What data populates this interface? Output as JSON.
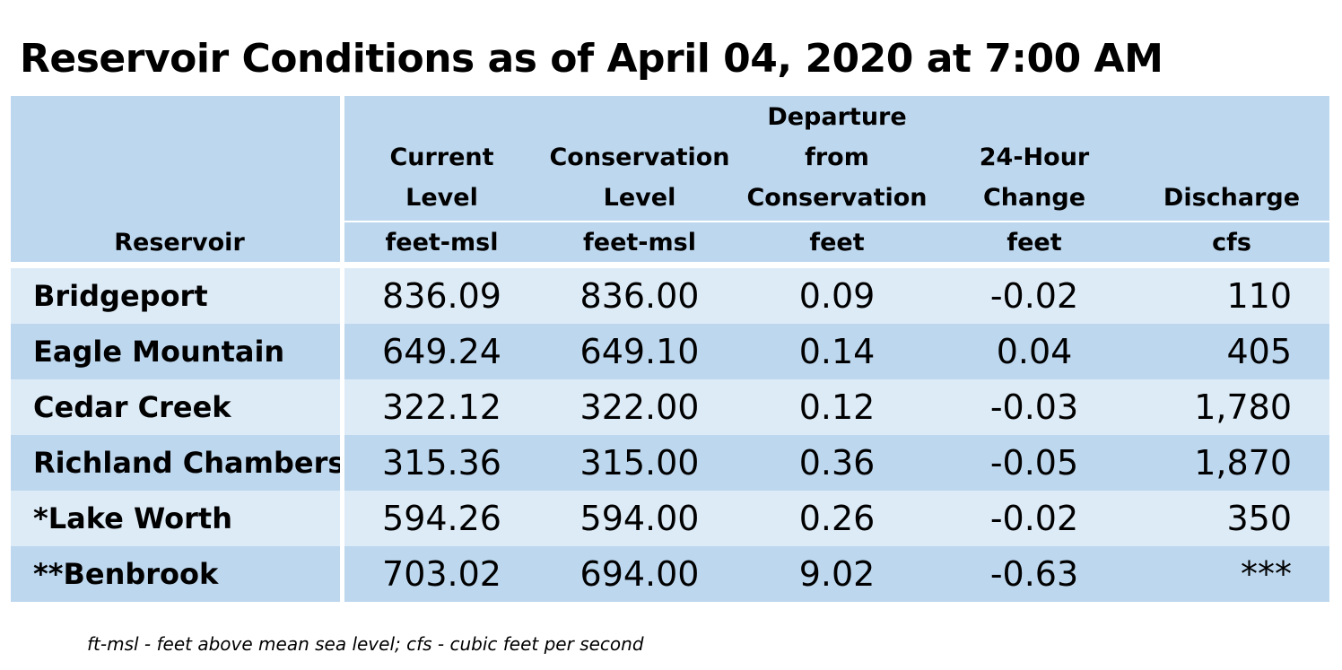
{
  "title": "Reservoir Conditions as of April 04, 2020 at 7:00 AM",
  "header": {
    "reservoir": "Reservoir",
    "current_line1": "Current",
    "current_line2": "Level",
    "conservation_line1": "Conservation",
    "conservation_line2": "Level",
    "departure_line1": "Departure",
    "departure_line2": "from",
    "departure_line3": "Conservation",
    "change_line1": "24-Hour",
    "change_line2": "Change",
    "discharge": "Discharge",
    "unit_current": "feet-msl",
    "unit_conservation": "feet-msl",
    "unit_departure": "feet",
    "unit_change": "feet",
    "unit_discharge": "cfs"
  },
  "rows": [
    {
      "name": "Bridgeport",
      "current": "836.09",
      "conservation": "836.00",
      "departure": "0.09",
      "change": "-0.02",
      "discharge": "110"
    },
    {
      "name": "Eagle Mountain",
      "current": "649.24",
      "conservation": "649.10",
      "departure": "0.14",
      "change": "0.04",
      "discharge": "405"
    },
    {
      "name": "Cedar Creek",
      "current": "322.12",
      "conservation": "322.00",
      "departure": "0.12",
      "change": "-0.03",
      "discharge": "1,780"
    },
    {
      "name": "Richland Chambers",
      "current": "315.36",
      "conservation": "315.00",
      "departure": "0.36",
      "change": "-0.05",
      "discharge": "1,870"
    },
    {
      "name": "*Lake Worth",
      "current": "594.26",
      "conservation": "594.00",
      "departure": "0.26",
      "change": "-0.02",
      "discharge": "350"
    },
    {
      "name": "**Benbrook",
      "current": "703.02",
      "conservation": "694.00",
      "departure": "9.02",
      "change": "-0.63",
      "discharge": "***"
    }
  ],
  "footnote": "ft-msl - feet above mean sea level; cfs - cubic feet per second",
  "colors": {
    "header_bg": "#bdd7ee",
    "row_light": "#ddebf7",
    "row_dark": "#bdd7ee"
  }
}
